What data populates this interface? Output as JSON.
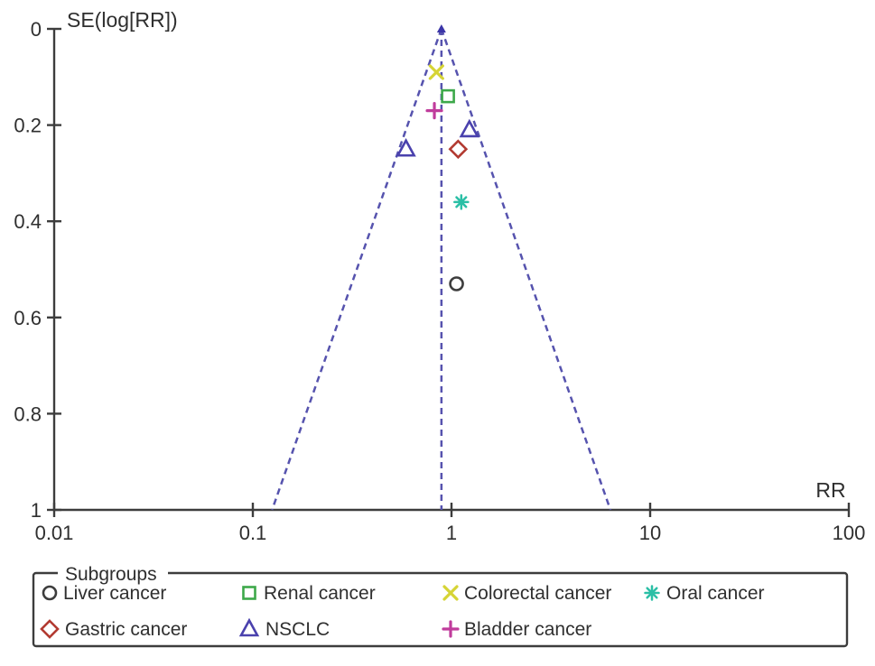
{
  "chart_data": {
    "type": "scatter",
    "subtype": "funnel-plot",
    "title": "",
    "xlabel": "RR",
    "ylabel": "SE(log[RR])",
    "x_scale": "log",
    "xlim": [
      0.01,
      100
    ],
    "ylim": [
      0,
      1
    ],
    "y_inverted": true,
    "grid": false,
    "axis_color": "#3d3d3d",
    "x_ticks": [
      {
        "value": 0.01,
        "label": "0.01"
      },
      {
        "value": 0.1,
        "label": "0.1"
      },
      {
        "value": 1,
        "label": "1"
      },
      {
        "value": 10,
        "label": "10"
      },
      {
        "value": 100,
        "label": "100"
      }
    ],
    "y_ticks": [
      {
        "value": 0,
        "label": "0"
      },
      {
        "value": 0.2,
        "label": "0.2"
      },
      {
        "value": 0.4,
        "label": "0.4"
      },
      {
        "value": 0.6,
        "label": "0.6"
      },
      {
        "value": 0.8,
        "label": "0.8"
      },
      {
        "value": 1,
        "label": "1"
      }
    ],
    "funnel": {
      "apex_rr": 0.89,
      "apex_se": 0,
      "base_se": 1,
      "left_base_rr": 0.125,
      "right_base_rr": 6.31,
      "center_line_rr": 0.89,
      "line_color": "#5653ae",
      "apex_marker_color": "#3b35a8",
      "dash_pattern": "7 5"
    },
    "series": [
      {
        "name": "Liver cancer",
        "marker": "circle",
        "color": "#3d3d3d",
        "points": [
          {
            "rr": 1.06,
            "se": 0.53
          }
        ]
      },
      {
        "name": "Renal cancer",
        "marker": "square",
        "color": "#3da84a",
        "points": [
          {
            "rr": 0.96,
            "se": 0.14
          }
        ]
      },
      {
        "name": "Colorectal cancer",
        "marker": "x",
        "color": "#d6d435",
        "points": [
          {
            "rr": 0.84,
            "se": 0.09
          }
        ]
      },
      {
        "name": "Oral cancer",
        "marker": "asterisk",
        "color": "#2bbfa6",
        "points": [
          {
            "rr": 1.12,
            "se": 0.36
          }
        ]
      },
      {
        "name": "Gastric cancer",
        "marker": "diamond",
        "color": "#b23a31",
        "points": [
          {
            "rr": 1.08,
            "se": 0.25
          }
        ]
      },
      {
        "name": "NSCLC",
        "marker": "triangle",
        "color": "#4a41ad",
        "points": [
          {
            "rr": 1.23,
            "se": 0.21
          },
          {
            "rr": 0.59,
            "se": 0.25
          }
        ]
      },
      {
        "name": "Bladder cancer",
        "marker": "plus",
        "color": "#c03c9c",
        "points": [
          {
            "rr": 0.82,
            "se": 0.17
          }
        ]
      }
    ],
    "legend": {
      "title": "Subgroups",
      "position": "bottom",
      "rows": [
        [
          "Liver cancer",
          "Renal cancer",
          "Colorectal cancer",
          "Oral cancer"
        ],
        [
          "Gastric cancer",
          "NSCLC",
          "Bladder cancer"
        ]
      ]
    }
  }
}
